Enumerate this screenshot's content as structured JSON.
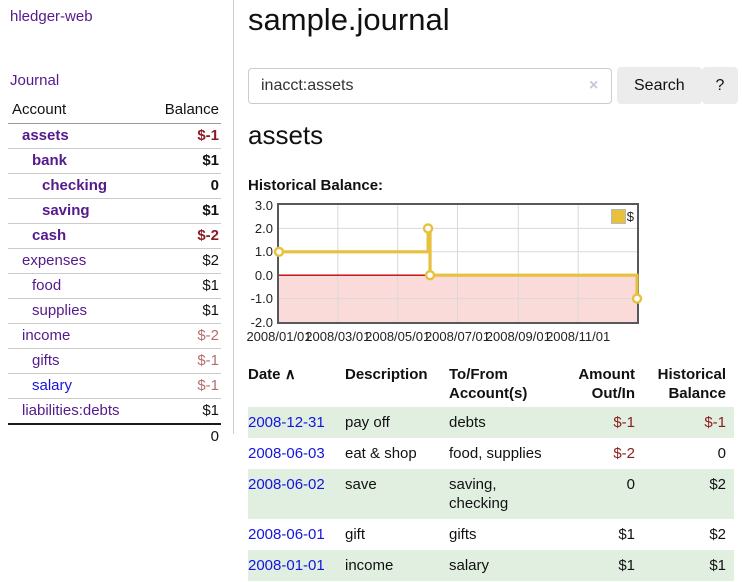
{
  "sidebar": {
    "app_title": "hledger-web",
    "journal_link": "Journal",
    "accounts": {
      "header_account": "Account",
      "header_balance": "Balance",
      "rows": [
        {
          "name": "assets",
          "balance": "$-1",
          "depth": 1,
          "bold": true,
          "unvisited": false
        },
        {
          "name": "bank",
          "balance": "$1",
          "depth": 2,
          "bold": true,
          "unvisited": false
        },
        {
          "name": "checking",
          "balance": "0",
          "depth": 3,
          "bold": true,
          "unvisited": false
        },
        {
          "name": "saving",
          "balance": "$1",
          "depth": 3,
          "bold": true,
          "unvisited": false
        },
        {
          "name": "cash",
          "balance": "$-2",
          "depth": 2,
          "bold": true,
          "unvisited": false
        },
        {
          "name": "expenses",
          "balance": "$2",
          "depth": 1,
          "bold": false,
          "unvisited": false
        },
        {
          "name": "food",
          "balance": "$1",
          "depth": 2,
          "bold": false,
          "unvisited": false
        },
        {
          "name": "supplies",
          "balance": "$1",
          "depth": 2,
          "bold": false,
          "unvisited": false
        },
        {
          "name": "income",
          "balance": "$-2",
          "depth": 1,
          "bold": false,
          "unvisited": false
        },
        {
          "name": "gifts",
          "balance": "$-1",
          "depth": 2,
          "bold": false,
          "unvisited": false
        },
        {
          "name": "salary",
          "balance": "$-1",
          "depth": 2,
          "bold": false,
          "unvisited": true
        },
        {
          "name": "liabilities:debts",
          "balance": "$1",
          "depth": 1,
          "bold": false,
          "unvisited": false
        }
      ],
      "total": "0"
    }
  },
  "header": {
    "title": "sample.journal"
  },
  "search": {
    "value": "inacct:assets",
    "clear_icon": "×",
    "submit_label": "Search",
    "help_label": "?"
  },
  "register": {
    "heading": "assets",
    "chart_label": "Historical Balance:"
  },
  "chart_data": {
    "type": "line",
    "step": true,
    "title": "Historical Balance:",
    "series": [
      {
        "name": "$",
        "color": "#e7c13d",
        "points": [
          {
            "date": "2008-01-01",
            "value": 1
          },
          {
            "date": "2008-06-01",
            "value": 2
          },
          {
            "date": "2008-06-03",
            "value": 0
          },
          {
            "date": "2008-12-31",
            "value": -1
          }
        ]
      }
    ],
    "x_ticks": [
      "2008/01/01",
      "2008/03/01",
      "2008/05/01",
      "2008/07/01",
      "2008/09/01",
      "2008/11/01"
    ],
    "y_ticks": [
      "3.0",
      "2.0",
      "1.0",
      "0.0",
      "-1.0",
      "-2.0"
    ],
    "xlim": [
      "2008-01-01",
      "2008-12-31"
    ],
    "ylim": [
      -2,
      3
    ],
    "grid": true,
    "legend": [
      "$"
    ],
    "legend_position": "top-right",
    "zero_line_color": "#c00000",
    "negative_fill": "#fbdada"
  },
  "table": {
    "sort_icon": "∧",
    "headers": {
      "date": "Date",
      "description": "Description",
      "accounts": "To/From Account(s)",
      "amount": "Amount Out/In",
      "balance": "Historical Balance"
    },
    "rows": [
      {
        "date": "2008-12-31",
        "description": "pay off",
        "accounts": "debts",
        "amount": "$-1",
        "balance": "$-1"
      },
      {
        "date": "2008-06-03",
        "description": "eat & shop",
        "accounts": "food, supplies",
        "amount": "$-2",
        "balance": "0"
      },
      {
        "date": "2008-06-02",
        "description": "save",
        "accounts": "saving, checking",
        "amount": "0",
        "balance": "$2"
      },
      {
        "date": "2008-06-01",
        "description": "gift",
        "accounts": "gifts",
        "amount": "$1",
        "balance": "$2"
      },
      {
        "date": "2008-01-01",
        "description": "income",
        "accounts": "salary",
        "amount": "$1",
        "balance": "$1"
      }
    ]
  }
}
